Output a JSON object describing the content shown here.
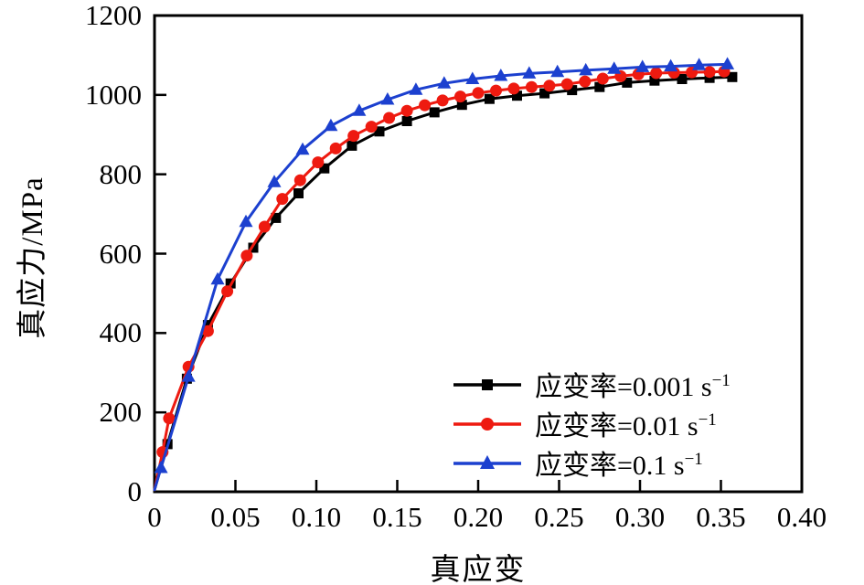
{
  "figure": {
    "background_color": "#ffffff",
    "axis_color": "#000000",
    "series_colors": {
      "black": "#000000",
      "red": "#ee1a10",
      "blue": "#1c40cf"
    }
  },
  "chart_data": {
    "type": "line",
    "title": "",
    "xlabel": "真应变",
    "ylabel": "真应力/MPa",
    "xlim": [
      0,
      0.4
    ],
    "ylim": [
      0,
      1200
    ],
    "grid": false,
    "x_ticks": [
      0,
      0.05,
      0.1,
      0.15,
      0.2,
      0.25,
      0.3,
      0.35,
      0.4
    ],
    "x_tick_labels": [
      "0",
      "0.05",
      "0.10",
      "0.15",
      "0.20",
      "0.25",
      "0.30",
      "0.35",
      "0.40"
    ],
    "y_ticks": [
      0,
      200,
      400,
      600,
      800,
      1000,
      1200
    ],
    "y_tick_labels": [
      "0",
      "200",
      "400",
      "600",
      "800",
      "1000",
      "1200"
    ],
    "legend": {
      "position": "inside-lower-right",
      "items": [
        {
          "label": "应变率=0.001 s⁻¹",
          "label_base": "应变率=0.001 s",
          "label_exp": "−1",
          "color": "#000000",
          "marker": "square"
        },
        {
          "label": "应变率=0.01 s⁻¹",
          "label_base": "应变率=0.01 s",
          "label_exp": "−1",
          "color": "#ee1a10",
          "marker": "circle"
        },
        {
          "label": "应变率=0.1 s⁻¹",
          "label_base": "应变率=0.1 s",
          "label_exp": "−1",
          "color": "#1c40cf",
          "marker": "triangle"
        }
      ]
    },
    "series": [
      {
        "name": "应变率=0.001 s⁻¹",
        "strain_rate": "0.001 s⁻¹",
        "color": "#000000",
        "marker": "square",
        "points": [
          [
            0,
            5
          ],
          [
            0.008,
            120
          ],
          [
            0.02,
            285
          ],
          [
            0.033,
            420
          ],
          [
            0.047,
            525
          ],
          [
            0.061,
            615
          ],
          [
            0.075,
            690
          ],
          [
            0.089,
            752
          ],
          [
            0.105,
            815
          ],
          [
            0.122,
            872
          ],
          [
            0.139,
            908
          ],
          [
            0.156,
            934
          ],
          [
            0.173,
            956
          ],
          [
            0.19,
            975
          ],
          [
            0.207,
            990
          ],
          [
            0.224,
            998
          ],
          [
            0.241,
            1004
          ],
          [
            0.258,
            1012
          ],
          [
            0.275,
            1020
          ],
          [
            0.292,
            1031
          ],
          [
            0.309,
            1036
          ],
          [
            0.326,
            1040
          ],
          [
            0.343,
            1043
          ],
          [
            0.357,
            1045
          ]
        ]
      },
      {
        "name": "应变率=0.01 s⁻¹",
        "strain_rate": "0.01 s⁻¹",
        "color": "#ee1a10",
        "marker": "circle",
        "points": [
          [
            0,
            5
          ],
          [
            0.005,
            100
          ],
          [
            0.009,
            185
          ],
          [
            0.021,
            315
          ],
          [
            0.033,
            405
          ],
          [
            0.045,
            505
          ],
          [
            0.057,
            595
          ],
          [
            0.068,
            668
          ],
          [
            0.079,
            738
          ],
          [
            0.09,
            785
          ],
          [
            0.101,
            830
          ],
          [
            0.112,
            865
          ],
          [
            0.123,
            897
          ],
          [
            0.134,
            920
          ],
          [
            0.145,
            942
          ],
          [
            0.156,
            960
          ],
          [
            0.167,
            974
          ],
          [
            0.178,
            986
          ],
          [
            0.189,
            996
          ],
          [
            0.2,
            1005
          ],
          [
            0.211,
            1011
          ],
          [
            0.222,
            1016
          ],
          [
            0.233,
            1020
          ],
          [
            0.244,
            1023
          ],
          [
            0.255,
            1027
          ],
          [
            0.266,
            1034
          ],
          [
            0.277,
            1041
          ],
          [
            0.288,
            1047
          ],
          [
            0.299,
            1052
          ],
          [
            0.31,
            1055
          ],
          [
            0.321,
            1056
          ],
          [
            0.332,
            1057
          ],
          [
            0.343,
            1058
          ],
          [
            0.352,
            1059
          ]
        ]
      },
      {
        "name": "应变率=0.1 s⁻¹",
        "strain_rate": "0.1 s⁻¹",
        "color": "#1c40cf",
        "marker": "triangle",
        "points": [
          [
            0,
            5
          ],
          [
            0.004,
            60
          ],
          [
            0.021,
            290
          ],
          [
            0.039,
            535
          ],
          [
            0.0565,
            680
          ],
          [
            0.074,
            780
          ],
          [
            0.0915,
            862
          ],
          [
            0.109,
            922
          ],
          [
            0.1265,
            960
          ],
          [
            0.144,
            988
          ],
          [
            0.1615,
            1013
          ],
          [
            0.179,
            1029
          ],
          [
            0.1965,
            1040
          ],
          [
            0.214,
            1048
          ],
          [
            0.2315,
            1054
          ],
          [
            0.249,
            1058
          ],
          [
            0.2665,
            1062
          ],
          [
            0.284,
            1066
          ],
          [
            0.3015,
            1070
          ],
          [
            0.319,
            1072
          ],
          [
            0.3365,
            1075
          ],
          [
            0.354,
            1077
          ]
        ]
      }
    ]
  }
}
